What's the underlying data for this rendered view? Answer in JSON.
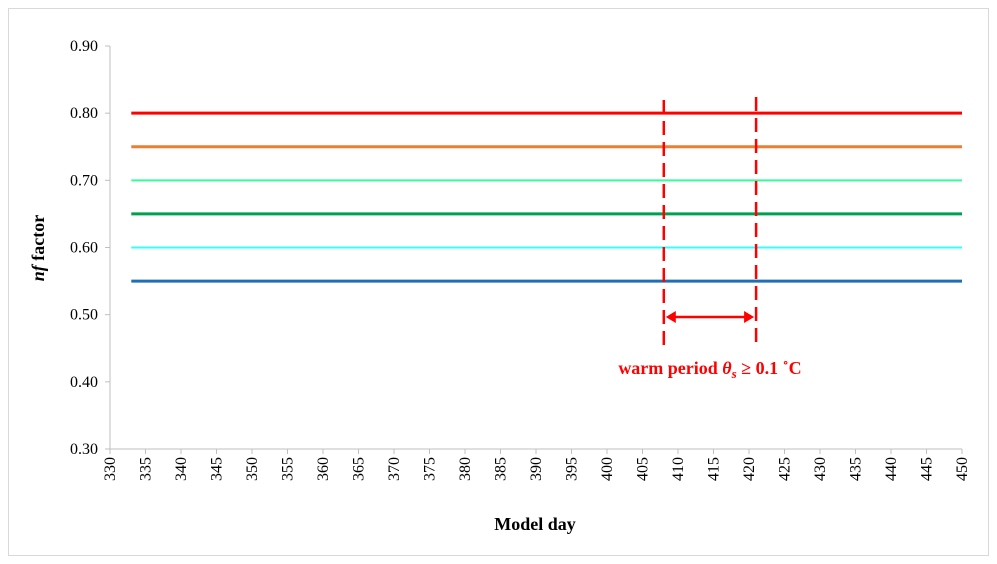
{
  "chart_data": {
    "type": "line",
    "xlabel": "Model day",
    "ylabel_parts": [
      "nf",
      " factor"
    ],
    "x": [
      333,
      450
    ],
    "series": [
      {
        "color": "#ff0000",
        "values": [
          0.8,
          0.8
        ],
        "width": 3
      },
      {
        "color": "#ed7d31",
        "values": [
          0.75,
          0.75
        ],
        "width": 3
      },
      {
        "color": "#33ff99",
        "values": [
          0.7,
          0.7
        ],
        "width": 2
      },
      {
        "color": "#00a050",
        "values": [
          0.65,
          0.65
        ],
        "width": 3
      },
      {
        "color": "#33ffff",
        "values": [
          0.6,
          0.6
        ],
        "width": 2
      },
      {
        "color": "#1f6fb4",
        "values": [
          0.55,
          0.55
        ],
        "width": 3
      }
    ],
    "xlim": [
      330,
      450
    ],
    "xticks": [
      330,
      335,
      340,
      345,
      350,
      355,
      360,
      365,
      370,
      375,
      380,
      385,
      390,
      395,
      400,
      405,
      410,
      415,
      420,
      425,
      430,
      435,
      440,
      445,
      450
    ],
    "ylim": [
      0.3,
      0.9
    ],
    "yticks": [
      {
        "value": 0.3,
        "label": "0.30"
      },
      {
        "value": 0.4,
        "label": "0.40"
      },
      {
        "value": 0.5,
        "label": "0.50"
      },
      {
        "value": 0.6,
        "label": "0.60"
      },
      {
        "value": 0.7,
        "label": "0.70"
      },
      {
        "value": 0.8,
        "label": "0.80"
      },
      {
        "value": 0.9,
        "label": "0.90"
      }
    ],
    "warm_period": {
      "start": 408,
      "end": 421,
      "color": "#ff0000",
      "label_parts": [
        "warm period ",
        "θ",
        "s",
        " ≥ 0.1 ˚C"
      ]
    }
  }
}
